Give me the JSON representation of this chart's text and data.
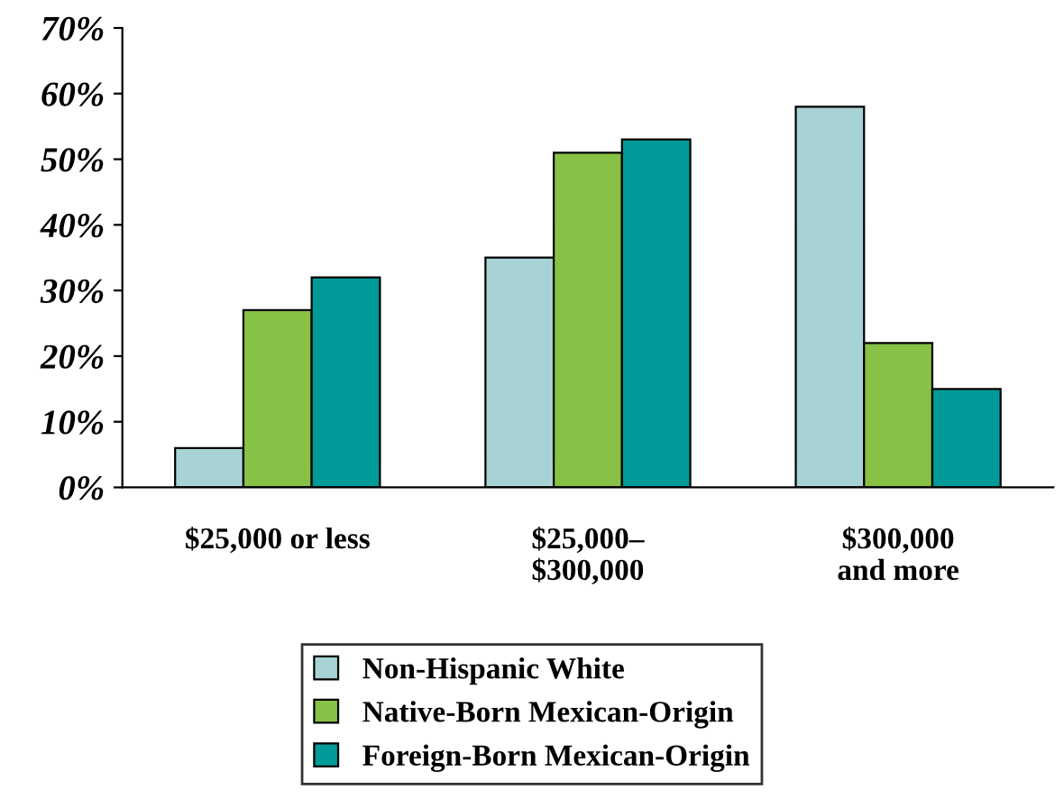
{
  "chart_data": {
    "type": "bar",
    "categories": [
      "$25,000 or less",
      "$25,000–\n$300,000",
      "$300,000\nand more"
    ],
    "series": [
      {
        "name": "Non-Hispanic White",
        "color": "#a8d3d5",
        "values": [
          6,
          35,
          58
        ]
      },
      {
        "name": "Native-Born Mexican-Origin",
        "color": "#87c145",
        "values": [
          27,
          51,
          22
        ]
      },
      {
        "name": "Foreign-Born Mexican-Origin",
        "color": "#009b98",
        "values": [
          32,
          53,
          15
        ]
      }
    ],
    "ylim": [
      0,
      70
    ],
    "yticks": [
      {
        "value": 0,
        "label": "0%"
      },
      {
        "value": 10,
        "label": "10%"
      },
      {
        "value": 20,
        "label": "20%"
      },
      {
        "value": 30,
        "label": "30%"
      },
      {
        "value": 40,
        "label": "40%"
      },
      {
        "value": 50,
        "label": "50%"
      },
      {
        "value": 60,
        "label": "60%"
      },
      {
        "value": 70,
        "label": "70%"
      }
    ],
    "grid": false,
    "legend": "bottom"
  }
}
